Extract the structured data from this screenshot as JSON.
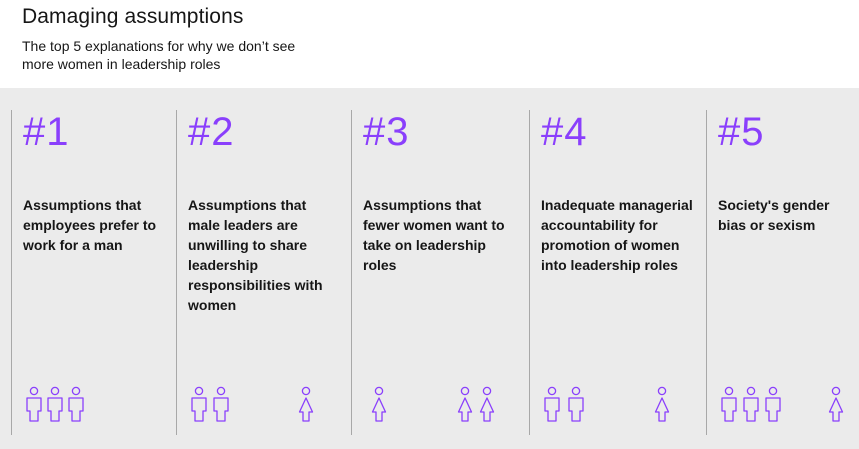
{
  "header": {
    "title": "Damaging assumptions",
    "subtitle": "The top 5 explanations for why we don’t see more women in leadership roles"
  },
  "accent_color": "#8a3ffc",
  "items": [
    {
      "rank": "#1",
      "text": "Assumptions that employees prefer to work for a man",
      "men": 3,
      "women": 0
    },
    {
      "rank": "#2",
      "text": "Assumptions that male leaders are unwilling to share leadership responsibilities with women",
      "men": 2,
      "women": 1
    },
    {
      "rank": "#3",
      "text": "Assumptions that fewer women want to take on leadership roles",
      "men": 0,
      "women": 3
    },
    {
      "rank": "#4",
      "text": "Inadequate managerial accountability for promotion of women into leadership roles",
      "men": 2,
      "women": 1
    },
    {
      "rank": "#5",
      "text": "Society's gender bias or sexism",
      "men": 3,
      "women": 1
    }
  ],
  "icons": {
    "man": "man-icon",
    "woman": "woman-icon"
  }
}
